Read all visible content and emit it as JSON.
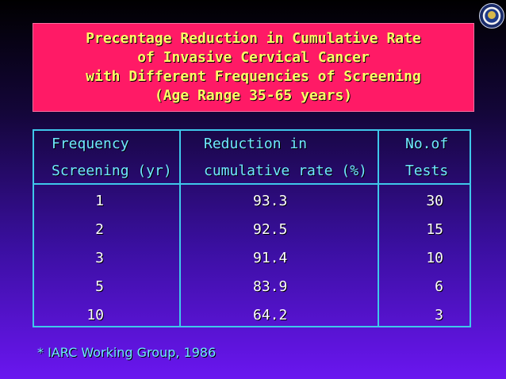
{
  "title": {
    "lines": [
      "Precentage Reduction in Cumulative Rate",
      "of Invasive Cervical Cancer",
      "with Different Frequencies of Screening",
      "(Age Range 35-65 years)"
    ]
  },
  "table": {
    "headers": [
      [
        "Frequency",
        "Screening (yr)"
      ],
      [
        "Reduction in",
        "cumulative rate (%)"
      ],
      [
        "No.of",
        "Tests"
      ]
    ],
    "rows": [
      [
        "1",
        "93.3",
        "30"
      ],
      [
        "2",
        "92.5",
        "15"
      ],
      [
        "3",
        "91.4",
        "10"
      ],
      [
        "5",
        "83.9",
        "6"
      ],
      [
        "10",
        "64.2",
        "3"
      ]
    ]
  },
  "footnote": "* IARC Working Group, 1986",
  "colors": {
    "title_bg": "#ff1a66",
    "title_text": "#ffff66",
    "header_text": "#6fe9ff",
    "data_text": "#ffffff",
    "border": "#3fc8ea"
  },
  "icons": [
    "seal-logo-icon"
  ]
}
